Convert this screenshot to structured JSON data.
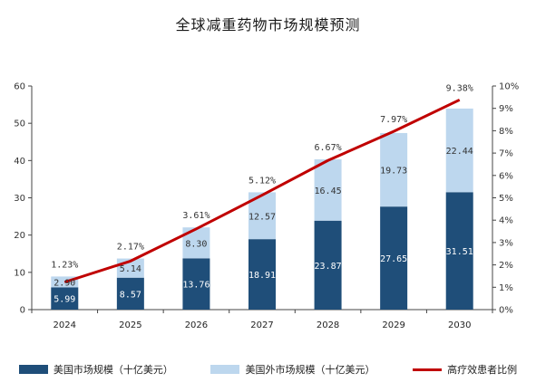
{
  "chart_data": {
    "type": "bar",
    "title": "全球减重药物市场规模预测",
    "categories": [
      "2024",
      "2025",
      "2026",
      "2027",
      "2028",
      "2029",
      "2030"
    ],
    "series": [
      {
        "name": "美国市场规模（十亿美元）",
        "type": "bar",
        "stack": "market",
        "axis": "left",
        "color": "#1f4e79",
        "values": [
          5.99,
          8.57,
          13.76,
          18.91,
          23.87,
          27.65,
          31.51
        ]
      },
      {
        "name": "美国外市场规模（十亿美元）",
        "type": "bar",
        "stack": "market",
        "axis": "left",
        "color": "#bdd7ee",
        "values": [
          2.9,
          5.14,
          8.3,
          12.57,
          16.45,
          19.73,
          22.44
        ]
      },
      {
        "name": "高疗效患者比例",
        "type": "line",
        "axis": "right",
        "color": "#c00000",
        "values": [
          1.23,
          2.17,
          3.61,
          5.12,
          6.67,
          7.97,
          9.38
        ],
        "labels": [
          "1.23%",
          "2.17%",
          "3.61%",
          "5.12%",
          "6.67%",
          "7.97%",
          "9.38%"
        ]
      }
    ],
    "y_left": {
      "min": 0,
      "max": 60,
      "step": 10,
      "ticks": [
        "0",
        "10",
        "20",
        "30",
        "40",
        "50",
        "60"
      ]
    },
    "y_right": {
      "min": 0,
      "max": 10,
      "step": 1,
      "ticks": [
        "0%",
        "1%",
        "2%",
        "3%",
        "4%",
        "5%",
        "6%",
        "7%",
        "8%",
        "9%",
        "10%"
      ]
    },
    "bar_labels": {
      "us": [
        "5.99",
        "8.57",
        "13.76",
        "18.91",
        "23.87",
        "27.65",
        "31.51"
      ],
      "non_us": [
        "2.90",
        "5.14",
        "8.30",
        "12.57",
        "16.45",
        "19.73",
        "22.44"
      ]
    },
    "grid": false,
    "legend_position": "bottom"
  },
  "legend": {
    "us_label": "美国市场规模（十亿美元）",
    "non_us_label": "美国外市场规模（十亿美元）",
    "line_label": "高疗效患者比例"
  }
}
